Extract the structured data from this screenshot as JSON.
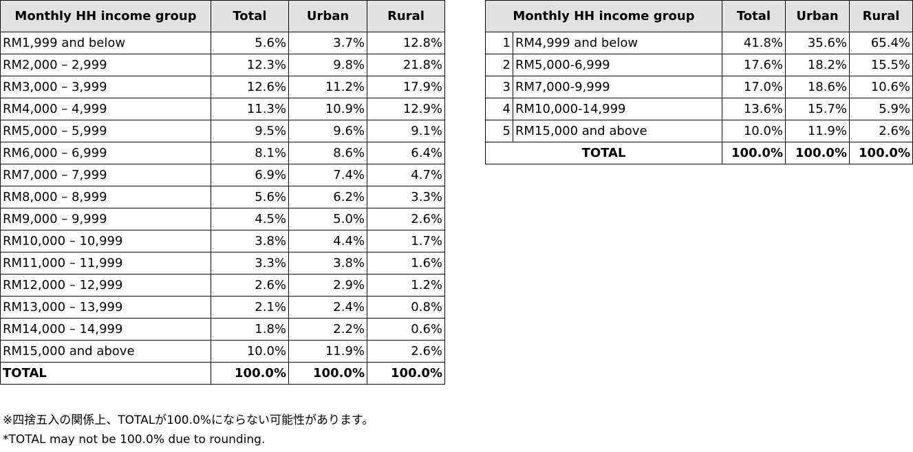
{
  "left_table": {
    "headers": [
      "Monthly HH income group",
      "Total",
      "Urban",
      "Rural"
    ],
    "rows": [
      [
        "RM1,999 and below",
        "5.6%",
        "3.7%",
        "12.8%"
      ],
      [
        "RM2,000 – 2,999",
        "12.3%",
        "9.8%",
        "21.8%"
      ],
      [
        "RM3,000 – 3,999",
        "12.6%",
        "11.2%",
        "17.9%"
      ],
      [
        "RM4,000 – 4,999",
        "11.3%",
        "10.9%",
        "12.9%"
      ],
      [
        "RM5,000 – 5,999",
        "9.5%",
        "9.6%",
        "9.1%"
      ],
      [
        "RM6,000 – 6,999",
        "8.1%",
        "8.6%",
        "6.4%"
      ],
      [
        "RM7,000 – 7,999",
        "6.9%",
        "7.4%",
        "4.7%"
      ],
      [
        "RM8,000 – 8,999",
        "5.6%",
        "6.2%",
        "3.3%"
      ],
      [
        "RM9,000 – 9,999",
        "4.5%",
        "5.0%",
        "2.6%"
      ],
      [
        "RM10,000 – 10,999",
        "3.8%",
        "4.4%",
        "1.7%"
      ],
      [
        "RM11,000 – 11,999",
        "3.3%",
        "3.8%",
        "1.6%"
      ],
      [
        "RM12,000 – 12,999",
        "2.6%",
        "2.9%",
        "1.2%"
      ],
      [
        "RM13,000 – 13,999",
        "2.1%",
        "2.4%",
        "0.8%"
      ],
      [
        "RM14,000 – 14,999",
        "1.8%",
        "2.2%",
        "0.6%"
      ],
      [
        "RM15,000 and above",
        "10.0%",
        "11.9%",
        "2.6%"
      ]
    ],
    "total": [
      "TOTAL",
      "100.0%",
      "100.0%",
      "100.0%"
    ]
  },
  "right_table": {
    "headers": [
      "Monthly HH income group",
      "Total",
      "Urban",
      "Rural"
    ],
    "rows": [
      [
        "1",
        "RM4,999 and below",
        "41.8%",
        "35.6%",
        "65.4%"
      ],
      [
        "2",
        "RM5,000-6,999",
        "17.6%",
        "18.2%",
        "15.5%"
      ],
      [
        "3",
        "RM7,000-9,999",
        "17.0%",
        "18.6%",
        "10.6%"
      ],
      [
        "4",
        "RM10,000-14,999",
        "13.6%",
        "15.7%",
        "5.9%"
      ],
      [
        "5",
        "RM15,000 and above",
        "10.0%",
        "11.9%",
        "2.6%"
      ]
    ],
    "total": [
      "TOTAL",
      "100.0%",
      "100.0%",
      "100.0%"
    ]
  },
  "notes": {
    "jp": "※四捨五入の関係上、TOTALが100.0%にならない可能性があります。",
    "en": "*TOTAL may not be 100.0% due to rounding."
  }
}
